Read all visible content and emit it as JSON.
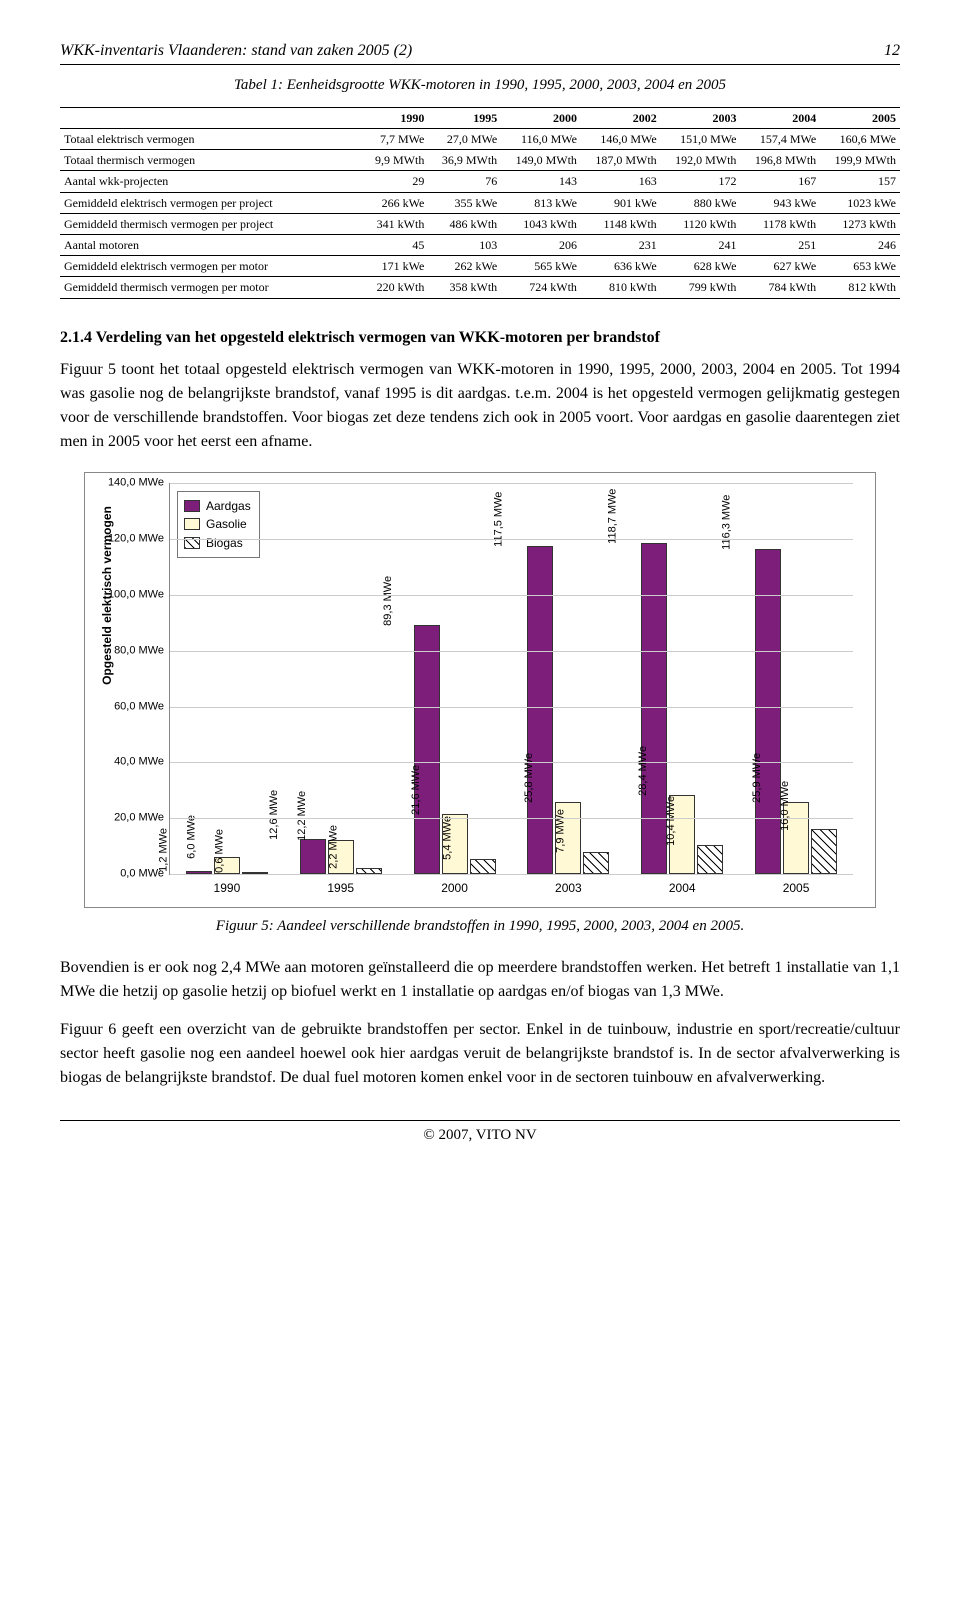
{
  "header": {
    "title": "WKK-inventaris Vlaanderen: stand van zaken 2005 (2)",
    "page": "12"
  },
  "table": {
    "caption": "Tabel 1: Eenheidsgrootte WKK-motoren in 1990, 1995, 2000, 2003, 2004 en 2005",
    "columns": [
      "",
      "1990",
      "1995",
      "2000",
      "2002",
      "2003",
      "2004",
      "2005"
    ],
    "rows": [
      [
        "Totaal elektrisch vermogen",
        "7,7 MWe",
        "27,0 MWe",
        "116,0 MWe",
        "146,0 MWe",
        "151,0 MWe",
        "157,4 MWe",
        "160,6 MWe"
      ],
      [
        "Totaal thermisch vermogen",
        "9,9 MWth",
        "36,9 MWth",
        "149,0 MWth",
        "187,0 MWth",
        "192,0 MWth",
        "196,8 MWth",
        "199,9 MWth"
      ],
      [
        "Aantal wkk-projecten",
        "29",
        "76",
        "143",
        "163",
        "172",
        "167",
        "157"
      ],
      [
        "Gemiddeld elektrisch vermogen per project",
        "266 kWe",
        "355 kWe",
        "813 kWe",
        "901 kWe",
        "880 kWe",
        "943 kWe",
        "1023 kWe"
      ],
      [
        "Gemiddeld thermisch vermogen per project",
        "341 kWth",
        "486 kWth",
        "1043 kWth",
        "1148 kWth",
        "1120 kWth",
        "1178 kWth",
        "1273 kWth"
      ],
      [
        "Aantal motoren",
        "45",
        "103",
        "206",
        "231",
        "241",
        "251",
        "246"
      ],
      [
        "Gemiddeld elektrisch vermogen per motor",
        "171 kWe",
        "262 kWe",
        "565 kWe",
        "636 kWe",
        "628 kWe",
        "627 kWe",
        "653 kWe"
      ],
      [
        "Gemiddeld thermisch vermogen per motor",
        "220 kWth",
        "358 kWth",
        "724 kWth",
        "810 kWth",
        "799 kWth",
        "784 kWth",
        "812 kWth"
      ]
    ]
  },
  "section": {
    "heading": "2.1.4 Verdeling van het opgesteld elektrisch vermogen van WKK-motoren per brandstof",
    "p1": "Figuur 5 toont het totaal opgesteld elektrisch vermogen van WKK-motoren in 1990, 1995, 2000, 2003, 2004 en 2005.  Tot 1994 was gasolie nog de belangrijkste brandstof, vanaf 1995 is dit aardgas. t.e.m. 2004 is het opgesteld vermogen gelijkmatig gestegen voor de verschillende brandstoffen.  Voor biogas zet deze tendens zich ook in 2005 voort.  Voor aardgas en gasolie daarentegen ziet men in 2005 voor het eerst een afname.",
    "p2": "Bovendien is er ook nog 2,4 MWe aan motoren geïnstalleerd die op meerdere brandstoffen werken. Het betreft 1 installatie van 1,1 MWe die hetzij op gasolie hetzij op biofuel werkt en 1 installatie op aardgas en/of biogas van 1,3 MWe.",
    "p3": "Figuur 6 geeft een overzicht van de gebruikte brandstoffen per sector.  Enkel in de tuinbouw, industrie en sport/recreatie/cultuur sector heeft gasolie nog een aandeel hoewel ook hier aardgas veruit de belangrijkste brandstof is.  In de sector afvalverwerking is biogas de belangrijkste brandstof.  De dual fuel motoren komen enkel voor in de sectoren tuinbouw en afvalverwerking."
  },
  "chart": {
    "type": "bar",
    "ylabel": "Opgesteld elektrisch vermogen",
    "ylim": [
      0,
      140
    ],
    "yticks": [
      "0,0 MWe",
      "20,0 MWe",
      "40,0 MWe",
      "60,0 MWe",
      "80,0 MWe",
      "100,0 MWe",
      "120,0 MWe",
      "140,0 MWe"
    ],
    "ytick_values": [
      0,
      20,
      40,
      60,
      80,
      100,
      120,
      140
    ],
    "categories": [
      "1990",
      "1995",
      "2000",
      "2003",
      "2004",
      "2005"
    ],
    "series": [
      {
        "name": "Aardgas",
        "color": "#7d1f7a",
        "pattern": "solid"
      },
      {
        "name": "Gasolie",
        "color": "#fff9d6",
        "pattern": "solid"
      },
      {
        "name": "Biogas",
        "color": "#ffffff",
        "pattern": "hatch"
      }
    ],
    "values": [
      [
        1.2,
        6.0,
        0.6
      ],
      [
        12.6,
        12.2,
        2.2
      ],
      [
        89.3,
        21.6,
        5.4
      ],
      [
        117.5,
        25.8,
        7.9
      ],
      [
        118.7,
        28.4,
        10.4
      ],
      [
        116.3,
        25.9,
        16.0
      ]
    ],
    "value_labels": [
      [
        "1,2 MWe",
        "6,0 MWe",
        "0,6 MWe"
      ],
      [
        "12,6 MWe",
        "12,2 MWe",
        "2,2 MWe"
      ],
      [
        "89,3 MWe",
        "21,6 MWe",
        "5,4 MWe"
      ],
      [
        "117,5 MWe",
        "25,8 MWe",
        "7,9 MWe"
      ],
      [
        "118,7 MWe",
        "28,4 MWe",
        "10,4 MWe"
      ],
      [
        "116,3 MWe",
        "25,9 MWe",
        "16,0 MWe"
      ]
    ],
    "caption": "Figuur 5: Aandeel verschillende brandstoffen in 1990, 1995, 2000, 2003, 2004 en 2005.",
    "grid_color": "#cccccc",
    "font_family": "Arial",
    "label_fontsize": 11
  },
  "footer": "© 2007, VITO NV"
}
